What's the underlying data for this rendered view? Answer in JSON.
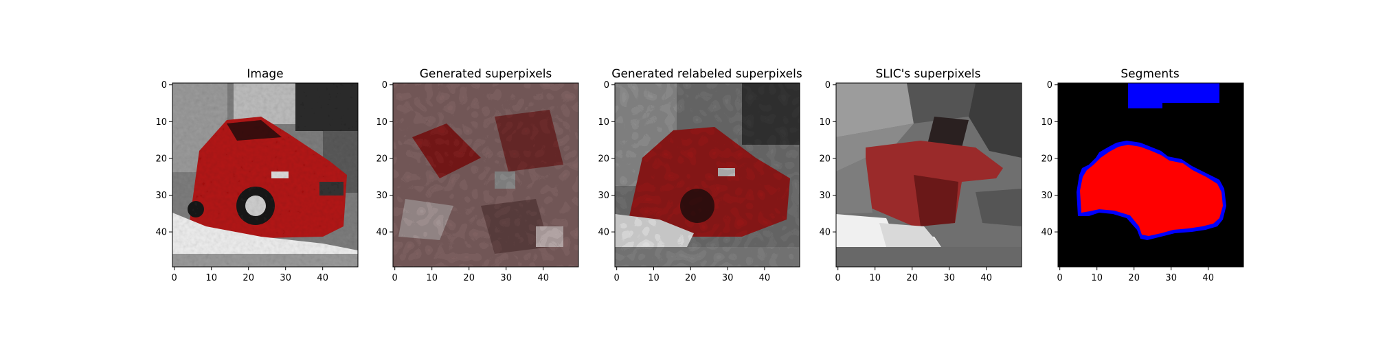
{
  "figure": {
    "panels": [
      {
        "title": "Image"
      },
      {
        "title": "Generated superpixels"
      },
      {
        "title": "Generated relabeled superpixels"
      },
      {
        "title": "SLIC's superpixels"
      },
      {
        "title": "Segments"
      }
    ]
  },
  "chart_data": {
    "type": "image-grid",
    "image_size": [
      50,
      50
    ],
    "x_ticks": [
      0,
      10,
      20,
      30,
      40
    ],
    "y_ticks": [
      0,
      10,
      20,
      30,
      40
    ],
    "xlim": [
      -0.5,
      49.5
    ],
    "ylim": [
      49.5,
      -0.5
    ],
    "panels": [
      {
        "title": "Image",
        "kind": "photo",
        "description_colors": {
          "car": "#c01818",
          "background": "#8a8a8a",
          "snow": "#f2f2f2"
        }
      },
      {
        "title": "Generated superpixels",
        "kind": "superpixels"
      },
      {
        "title": "Generated relabeled superpixels",
        "kind": "superpixels"
      },
      {
        "title": "SLIC's superpixels",
        "kind": "superpixels"
      },
      {
        "title": "Segments",
        "kind": "segmentation",
        "colors": {
          "background": "#000000",
          "object": "#ff0000",
          "boundary": "#0000ff"
        }
      }
    ]
  }
}
